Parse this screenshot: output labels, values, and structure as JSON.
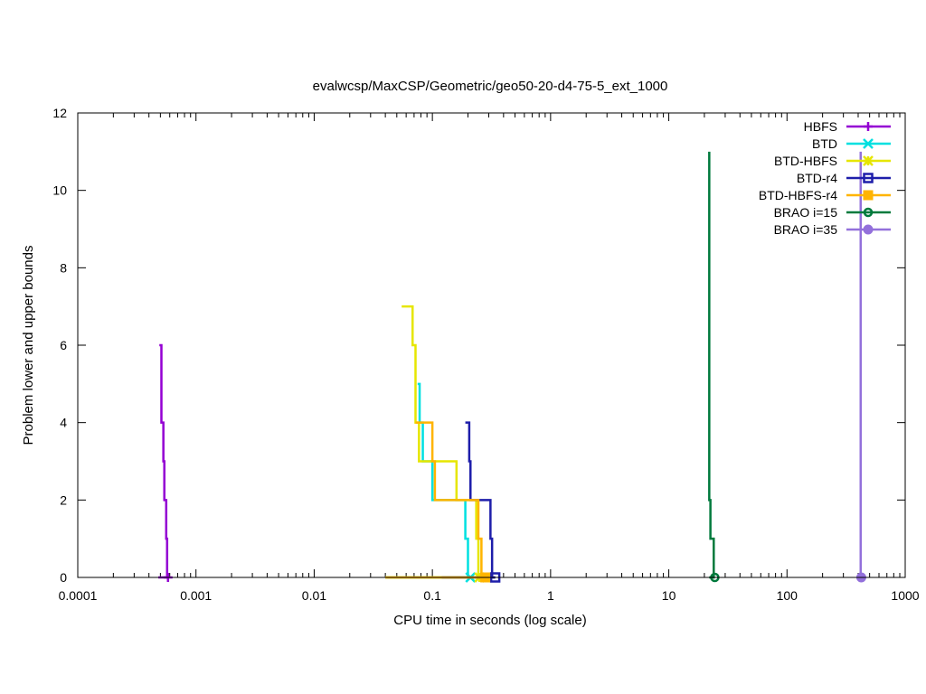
{
  "chart_data": {
    "type": "line",
    "title": "evalwcsp/MaxCSP/Geometric/geo50-20-d4-75-5_ext_1000",
    "xlabel": "CPU time in seconds (log scale)",
    "ylabel": "Problem lower and upper bounds",
    "xscale": "log",
    "xlim": [
      0.0001,
      1000
    ],
    "ylim": [
      0,
      12
    ],
    "x_ticks": [
      {
        "value": 0.0001,
        "label": "0.0001"
      },
      {
        "value": 0.001,
        "label": "0.001"
      },
      {
        "value": 0.01,
        "label": "0.01"
      },
      {
        "value": 0.1,
        "label": "0.1"
      },
      {
        "value": 1,
        "label": "1"
      },
      {
        "value": 10,
        "label": "10"
      },
      {
        "value": 100,
        "label": "100"
      },
      {
        "value": 1000,
        "label": "1000"
      }
    ],
    "y_ticks": [
      {
        "value": 0,
        "label": "0"
      },
      {
        "value": 2,
        "label": "2"
      },
      {
        "value": 4,
        "label": "4"
      },
      {
        "value": 6,
        "label": "6"
      },
      {
        "value": 8,
        "label": "8"
      },
      {
        "value": 10,
        "label": "10"
      },
      {
        "value": 12,
        "label": "12"
      }
    ],
    "grid": false,
    "legend_position": "top-right",
    "series": [
      {
        "name": "HBFS",
        "color": "#9400d3",
        "marker": "plus",
        "upper": [
          [
            0.00049,
            6
          ],
          [
            0.00051,
            6
          ],
          [
            0.00051,
            4
          ],
          [
            0.00053,
            4
          ],
          [
            0.00053,
            3
          ],
          [
            0.00054,
            3
          ],
          [
            0.00054,
            2
          ],
          [
            0.00056,
            2
          ],
          [
            0.00056,
            1
          ],
          [
            0.00057,
            1
          ],
          [
            0.00057,
            0
          ],
          [
            0.00058,
            0
          ]
        ],
        "lower": [
          [
            0.00048,
            0
          ],
          [
            0.00058,
            0
          ]
        ]
      },
      {
        "name": "BTD",
        "color": "#00e0e0",
        "marker": "x",
        "upper": [
          [
            0.075,
            5
          ],
          [
            0.078,
            5
          ],
          [
            0.078,
            4
          ],
          [
            0.083,
            4
          ],
          [
            0.083,
            3
          ],
          [
            0.1,
            3
          ],
          [
            0.1,
            2
          ],
          [
            0.19,
            2
          ],
          [
            0.19,
            1
          ],
          [
            0.2,
            1
          ],
          [
            0.2,
            0
          ],
          [
            0.21,
            0
          ]
        ],
        "lower": [
          [
            0.04,
            0
          ],
          [
            0.21,
            0
          ]
        ]
      },
      {
        "name": "BTD-HBFS",
        "color": "#e6e600",
        "marker": "star",
        "upper": [
          [
            0.055,
            7
          ],
          [
            0.068,
            7
          ],
          [
            0.068,
            6
          ],
          [
            0.072,
            6
          ],
          [
            0.072,
            4
          ],
          [
            0.077,
            4
          ],
          [
            0.077,
            3
          ],
          [
            0.16,
            3
          ],
          [
            0.16,
            2
          ],
          [
            0.235,
            2
          ],
          [
            0.235,
            1
          ],
          [
            0.245,
            1
          ],
          [
            0.245,
            0
          ],
          [
            0.25,
            0
          ]
        ],
        "lower": [
          [
            0.04,
            0
          ],
          [
            0.25,
            0
          ]
        ]
      },
      {
        "name": "BTD-r4",
        "color": "#1e1eaa",
        "marker": "square-open",
        "upper": [
          [
            0.19,
            4
          ],
          [
            0.205,
            4
          ],
          [
            0.205,
            3
          ],
          [
            0.21,
            3
          ],
          [
            0.21,
            2
          ],
          [
            0.31,
            2
          ],
          [
            0.31,
            1
          ],
          [
            0.32,
            1
          ],
          [
            0.32,
            0
          ],
          [
            0.34,
            0
          ]
        ],
        "lower": [
          [
            0.12,
            0
          ],
          [
            0.34,
            0
          ]
        ]
      },
      {
        "name": "BTD-HBFS-r4",
        "color": "#ffb400",
        "marker": "square-filled",
        "upper": [
          [
            0.072,
            4
          ],
          [
            0.1,
            4
          ],
          [
            0.1,
            3
          ],
          [
            0.105,
            3
          ],
          [
            0.105,
            2
          ],
          [
            0.245,
            2
          ],
          [
            0.245,
            1
          ],
          [
            0.26,
            1
          ],
          [
            0.26,
            0
          ],
          [
            0.28,
            0
          ]
        ],
        "lower": [
          [
            0.04,
            0
          ],
          [
            0.28,
            0
          ]
        ]
      },
      {
        "name": "BRAO i=15",
        "color": "#007a3d",
        "marker": "circle-open",
        "upper": [
          [
            22,
            11
          ],
          [
            22,
            2
          ],
          [
            22.5,
            2
          ],
          [
            22.5,
            1
          ],
          [
            24,
            1
          ],
          [
            24,
            0
          ],
          [
            24.5,
            0
          ]
        ],
        "lower": [
          [
            22,
            0
          ],
          [
            24.5,
            0
          ]
        ]
      },
      {
        "name": "BRAO i=35",
        "color": "#9370db",
        "marker": "circle-filled",
        "upper": [
          [
            420,
            11
          ],
          [
            420,
            0
          ],
          [
            425,
            0
          ]
        ],
        "lower": [
          [
            415,
            0
          ],
          [
            425,
            0
          ]
        ]
      }
    ]
  }
}
